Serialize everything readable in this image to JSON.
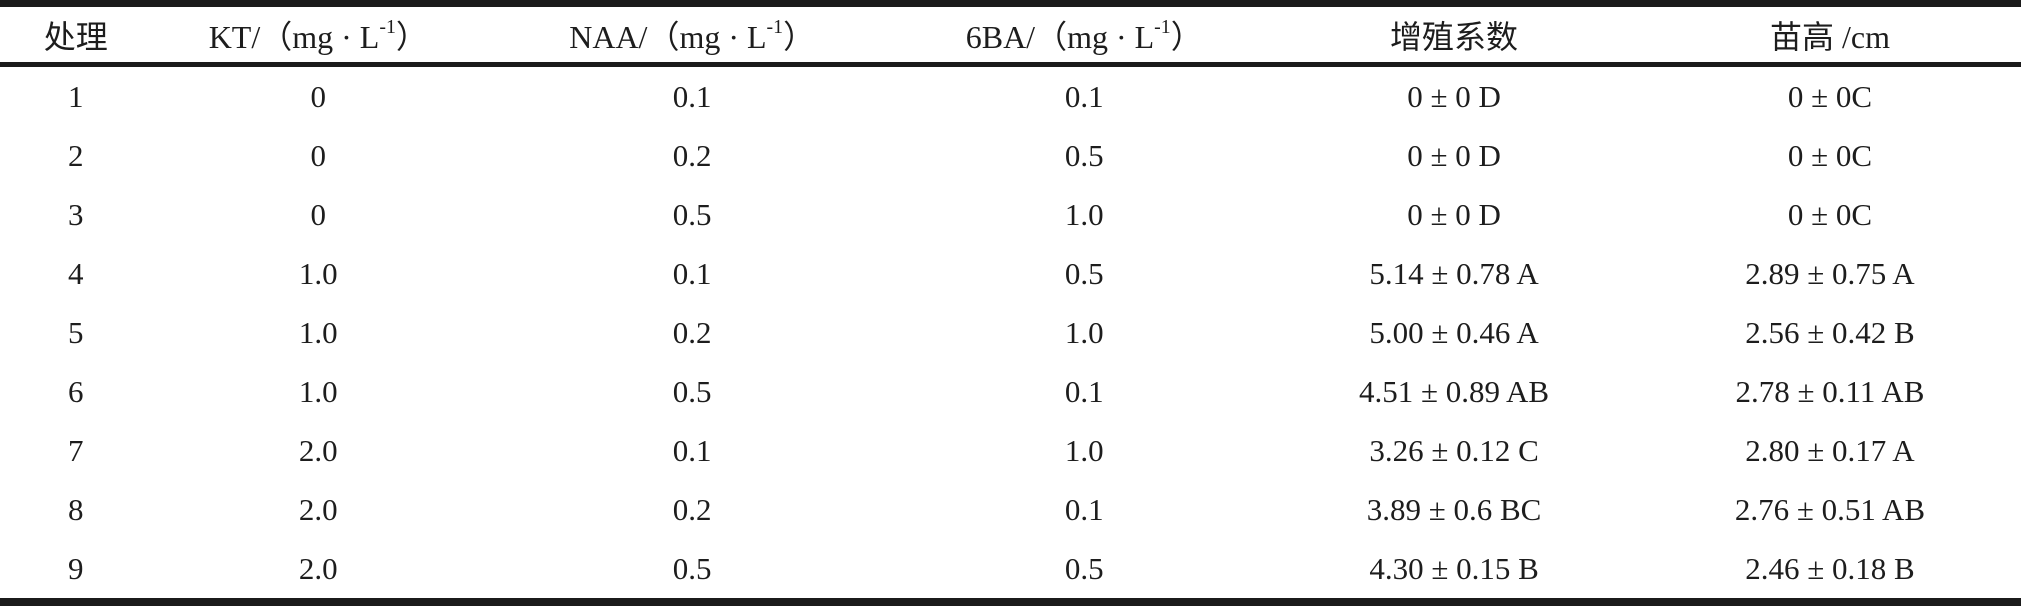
{
  "page": {
    "background_color": "#ffffff",
    "text_color": "#1d1d1d",
    "rule_color": "#1b1b1b"
  },
  "table": {
    "columns": [
      {
        "name": "treatment",
        "label": [
          {
            "t": "处理"
          }
        ]
      },
      {
        "name": "kt-concentration",
        "label": [
          {
            "t": "KT/（mg · L"
          },
          {
            "sup": "-1"
          },
          {
            "t": "）"
          }
        ]
      },
      {
        "name": "naa-concentration",
        "label": [
          {
            "t": "NAA/（mg · L"
          },
          {
            "sup": "-1"
          },
          {
            "t": "）"
          }
        ]
      },
      {
        "name": "6ba-concentration",
        "label": [
          {
            "t": "6BA/（mg · L"
          },
          {
            "sup": "-1"
          },
          {
            "t": "）"
          }
        ]
      },
      {
        "name": "proliferation-coefficient",
        "label": [
          {
            "t": "增殖系数"
          }
        ]
      },
      {
        "name": "seedling-height",
        "label": [
          {
            "t": "苗高 /cm"
          }
        ]
      }
    ],
    "rows": [
      [
        "1",
        "0",
        "0.1",
        "0.1",
        "0 ± 0 D",
        "0 ± 0C"
      ],
      [
        "2",
        "0",
        "0.2",
        "0.5",
        "0 ± 0 D",
        "0 ± 0C"
      ],
      [
        "3",
        "0",
        "0.5",
        "1.0",
        "0 ± 0 D",
        "0 ± 0C"
      ],
      [
        "4",
        "1.0",
        "0.1",
        "0.5",
        "5.14 ± 0.78 A",
        "2.89 ± 0.75 A"
      ],
      [
        "5",
        "1.0",
        "0.2",
        "1.0",
        "5.00 ± 0.46 A",
        "2.56 ± 0.42 B"
      ],
      [
        "6",
        "1.0",
        "0.5",
        "0.1",
        "4.51 ± 0.89 AB",
        "2.78 ± 0.11 AB"
      ],
      [
        "7",
        "2.0",
        "0.1",
        "1.0",
        "3.26 ± 0.12 C",
        "2.80 ± 0.17 A"
      ],
      [
        "8",
        "2.0",
        "0.2",
        "0.1",
        "3.89 ± 0.6 BC",
        "2.76 ± 0.51 AB"
      ],
      [
        "9",
        "2.0",
        "0.5",
        "0.5",
        "4.30 ± 0.15 B",
        "2.46 ± 0.18 B"
      ]
    ]
  }
}
